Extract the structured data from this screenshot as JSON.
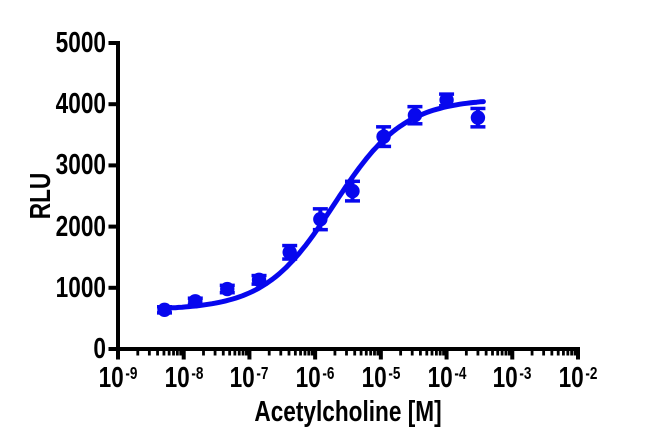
{
  "figure": {
    "background_color": "#ffffff",
    "axis_color": "#000000",
    "accent_color": "#0707ee"
  },
  "chart_data": {
    "type": "scatter",
    "title": "",
    "xlabel": "Acetylcholine [M]",
    "ylabel": "RLU",
    "x_scale": "log10",
    "xlim": [
      1e-09,
      0.01
    ],
    "x_ticks_exponents": [
      -9,
      -8,
      -7,
      -6,
      -5,
      -4,
      -3,
      -2
    ],
    "x_minor_ticks": "log positions 2-9 within each decade",
    "ylim": [
      0,
      5000
    ],
    "y_ticks": [
      0,
      1000,
      2000,
      3000,
      4000,
      5000
    ],
    "grid": false,
    "legend": "none",
    "series": [
      {
        "name": "Acetylcholine",
        "marker": "circle",
        "color": "#0707ee",
        "points": [
          {
            "conc_M": 5.1e-09,
            "rlu": 640,
            "sem": 50
          },
          {
            "conc_M": 1.5e-08,
            "rlu": 780,
            "sem": 50
          },
          {
            "conc_M": 4.6e-08,
            "rlu": 980,
            "sem": 60
          },
          {
            "conc_M": 1.4e-07,
            "rlu": 1130,
            "sem": 70
          },
          {
            "conc_M": 4.1e-07,
            "rlu": 1580,
            "sem": 110
          },
          {
            "conc_M": 1.2e-06,
            "rlu": 2120,
            "sem": 170
          },
          {
            "conc_M": 3.7e-06,
            "rlu": 2580,
            "sem": 160
          },
          {
            "conc_M": 1.1e-05,
            "rlu": 3470,
            "sem": 160
          },
          {
            "conc_M": 3.3e-05,
            "rlu": 3820,
            "sem": 140
          },
          {
            "conc_M": 0.0001,
            "rlu": 4070,
            "sem": 95
          },
          {
            "conc_M": 0.0003,
            "rlu": 3780,
            "sem": 150
          }
        ]
      }
    ],
    "fit_curve": {
      "model": "4PL log(agonist) vs response",
      "bottom_rlu": 640,
      "top_rlu": 4090,
      "log_ec50": -5.71,
      "hill_slope": 0.82,
      "x_range_log": [
        -8.33,
        -3.44
      ]
    }
  }
}
